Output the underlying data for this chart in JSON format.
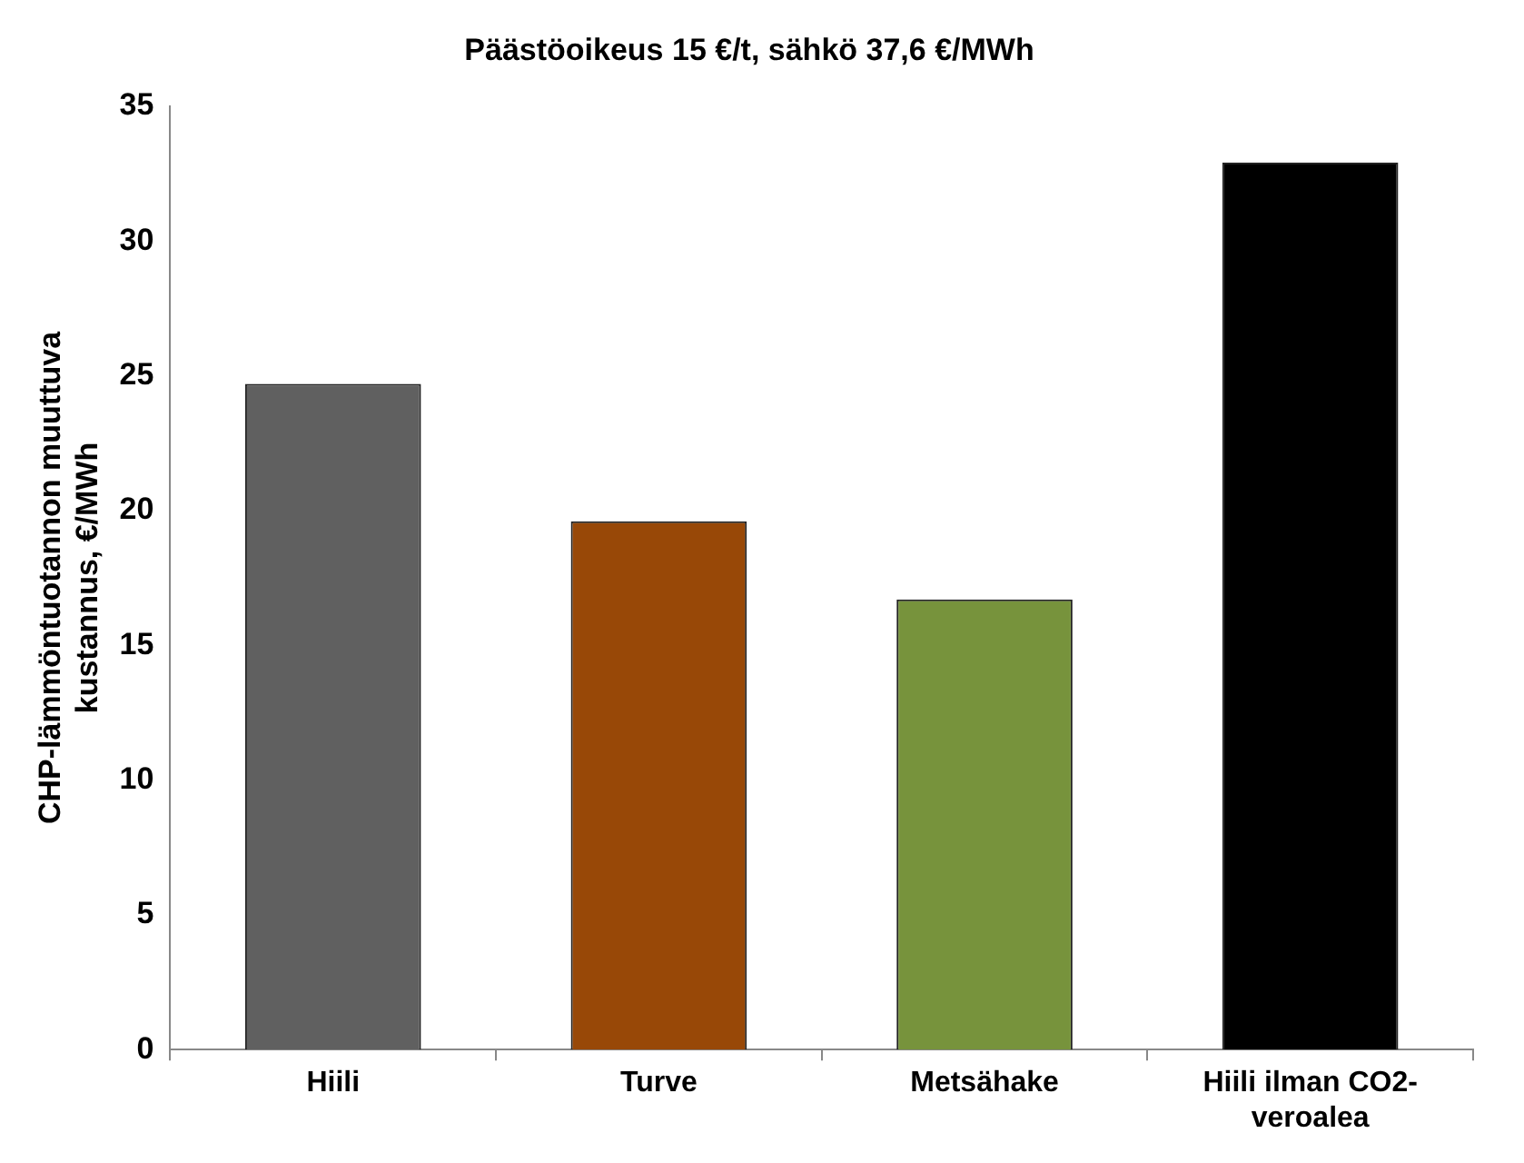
{
  "chart_data": {
    "type": "bar",
    "title": "Päästöoikeus 15 €/t, sähkö 37,6 €/MWh",
    "ylabel": "CHP-lämmöntuotannon muuttuva kustannus, €/MWh",
    "categories": [
      "Hiili",
      "Turve",
      "Metsähake",
      "Hiili ilman CO2-veroalea"
    ],
    "values": [
      24.7,
      19.6,
      16.7,
      32.9
    ],
    "colors": [
      "#606060",
      "#984807",
      "#77933c",
      "#000000"
    ],
    "ylim": [
      0,
      35
    ],
    "yticks": [
      0,
      5,
      10,
      15,
      20,
      25,
      30,
      35
    ],
    "grid": false,
    "legend": false
  }
}
